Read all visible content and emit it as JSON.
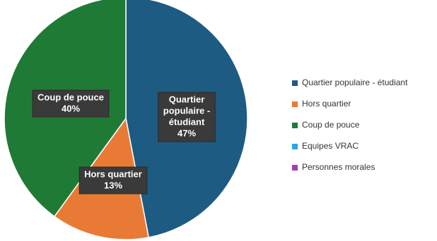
{
  "chart_data": {
    "type": "pie",
    "categories": [
      "Quartier populaire - étudiant",
      "Hors quartier",
      "Coup de pouce",
      "Equipes VRAC",
      "Personnes morales"
    ],
    "values": [
      47,
      13,
      40,
      0,
      0
    ],
    "value_labels": [
      "47%",
      "13%",
      "40%",
      "",
      ""
    ],
    "colors": [
      "#1d5b83",
      "#e97a35",
      "#1f7a35",
      "#2aa7de",
      "#a63cb5"
    ],
    "slice_label_lines": [
      [
        "Quartier",
        "populaire -",
        "étudiant"
      ],
      [
        "Hors quartier"
      ],
      [
        "Coup de pouce"
      ],
      [],
      []
    ],
    "legend_labels": [
      "Quartier populaire - étudiant",
      "Hors quartier",
      "Coup de pouce",
      "Equipes VRAC",
      "Personnes morales"
    ],
    "legend_position": "right",
    "start_angle_deg": 0,
    "direction": "clockwise"
  }
}
